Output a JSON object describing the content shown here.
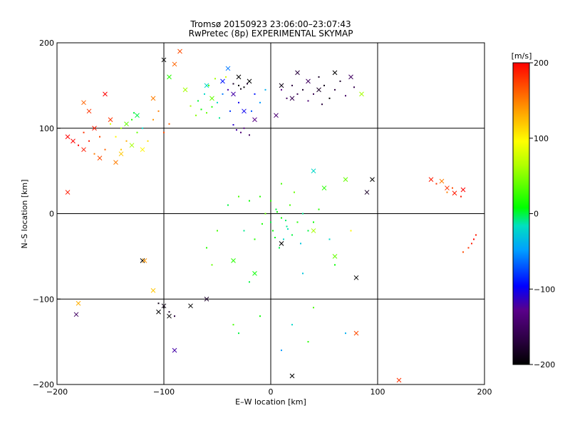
{
  "chart_data": {
    "type": "scatter",
    "title": "Tromsø 20150923 23:06:00–23:07:43",
    "subtitle": "RwPretec (8p) EXPERIMENTAL SKYMAP",
    "xlabel": "E–W location [km]",
    "ylabel": "N–S location [km]",
    "xlim": [
      -200,
      200
    ],
    "ylim": [
      -200,
      200
    ],
    "xticks": [
      -200,
      -100,
      0,
      100,
      200
    ],
    "yticks": [
      -200,
      -100,
      0,
      100,
      200
    ],
    "grid": true,
    "colorbar": {
      "label": "[m/s]",
      "range": [
        -200,
        200
      ],
      "ticks": [
        200,
        100,
        0,
        -100,
        -200
      ],
      "colormap": "rainbow (black-purple-blue-cyan-green-yellow-red)"
    },
    "series": [
      {
        "marker": "dot",
        "points": [
          [
            -30,
            150,
            -210
          ],
          [
            -25,
            148,
            -200
          ],
          [
            -35,
            152,
            -180
          ],
          [
            -28,
            146,
            -190
          ],
          [
            -22,
            152,
            -170
          ],
          [
            -40,
            145,
            -120
          ],
          [
            -45,
            140,
            -60
          ],
          [
            -50,
            130,
            -20
          ],
          [
            -55,
            125,
            20
          ],
          [
            -60,
            118,
            40
          ],
          [
            -65,
            122,
            10
          ],
          [
            -70,
            115,
            50
          ],
          [
            -48,
            112,
            -10
          ],
          [
            -38,
            120,
            -80
          ],
          [
            -30,
            130,
            -100
          ],
          [
            -25,
            100,
            -130
          ],
          [
            -28,
            95,
            -140
          ],
          [
            -32,
            98,
            -120
          ],
          [
            -20,
            92,
            -150
          ],
          [
            -35,
            104,
            -110
          ],
          [
            -15,
            140,
            -90
          ],
          [
            -10,
            130,
            -50
          ],
          [
            -18,
            120,
            -70
          ],
          [
            -5,
            145,
            -40
          ],
          [
            -42,
            160,
            80
          ],
          [
            -52,
            158,
            60
          ],
          [
            -58,
            150,
            30
          ],
          [
            -62,
            140,
            -20
          ],
          [
            -68,
            132,
            0
          ],
          [
            -75,
            126,
            60
          ],
          [
            20,
            150,
            -170
          ],
          [
            30,
            145,
            -180
          ],
          [
            40,
            140,
            -160
          ],
          [
            50,
            150,
            -190
          ],
          [
            60,
            145,
            -170
          ],
          [
            70,
            138,
            -150
          ],
          [
            45,
            160,
            -180
          ],
          [
            55,
            135,
            -200
          ],
          [
            35,
            132,
            -140
          ],
          [
            25,
            140,
            -160
          ],
          [
            15,
            135,
            -150
          ],
          [
            65,
            155,
            -180
          ],
          [
            78,
            148,
            -160
          ],
          [
            10,
            145,
            -130
          ],
          [
            48,
            128,
            -170
          ],
          [
            -130,
            110,
            20
          ],
          [
            -140,
            100,
            60
          ],
          [
            -125,
            95,
            40
          ],
          [
            -145,
            90,
            100
          ],
          [
            -135,
            85,
            130
          ],
          [
            -150,
            105,
            80
          ],
          [
            -120,
            100,
            -20
          ],
          [
            -110,
            110,
            140
          ],
          [
            -160,
            90,
            170
          ],
          [
            -170,
            85,
            190
          ],
          [
            -180,
            80,
            200
          ],
          [
            -175,
            95,
            180
          ],
          [
            -155,
            75,
            160
          ],
          [
            -165,
            70,
            150
          ],
          [
            -140,
            75,
            120
          ],
          [
            -115,
            85,
            110
          ],
          [
            -100,
            95,
            170
          ],
          [
            -95,
            105,
            160
          ],
          [
            -105,
            120,
            150
          ],
          [
            -128,
            118,
            0
          ],
          [
            0,
            15,
            20
          ],
          [
            5,
            5,
            0
          ],
          [
            10,
            -5,
            10
          ],
          [
            15,
            -15,
            -10
          ],
          [
            20,
            -25,
            0
          ],
          [
            25,
            -10,
            20
          ],
          [
            -5,
            0,
            40
          ],
          [
            2,
            -20,
            10
          ],
          [
            12,
            -30,
            -20
          ],
          [
            18,
            10,
            30
          ],
          [
            -10,
            20,
            20
          ],
          [
            -20,
            15,
            10
          ],
          [
            -30,
            20,
            30
          ],
          [
            -40,
            10,
            0
          ],
          [
            30,
            0,
            -10
          ],
          [
            35,
            -20,
            0
          ],
          [
            28,
            -35,
            -30
          ],
          [
            8,
            -40,
            0
          ],
          [
            -15,
            -30,
            20
          ],
          [
            -25,
            -20,
            -10
          ],
          [
            40,
            -10,
            10
          ],
          [
            45,
            5,
            20
          ],
          [
            22,
            25,
            40
          ],
          [
            10,
            35,
            30
          ],
          [
            0,
            -10,
            0
          ],
          [
            6,
            2,
            10
          ],
          [
            14,
            -8,
            -5
          ],
          [
            -8,
            -12,
            15
          ],
          [
            4,
            -28,
            5
          ],
          [
            16,
            -18,
            -15
          ],
          [
            -50,
            -20,
            30
          ],
          [
            -60,
            -40,
            20
          ],
          [
            55,
            -30,
            -20
          ],
          [
            60,
            -60,
            10
          ],
          [
            30,
            -70,
            -30
          ],
          [
            -20,
            -80,
            0
          ],
          [
            -10,
            -120,
            10
          ],
          [
            20,
            -130,
            -20
          ],
          [
            -30,
            -140,
            0
          ],
          [
            40,
            -110,
            30
          ],
          [
            70,
            -140,
            -40
          ],
          [
            -100,
            -110,
            -200
          ],
          [
            -95,
            -115,
            -180
          ],
          [
            -105,
            -105,
            -190
          ],
          [
            -90,
            -120,
            -170
          ],
          [
            190,
            -30,
            200
          ],
          [
            185,
            -40,
            180
          ],
          [
            192,
            -25,
            190
          ],
          [
            180,
            -45,
            170
          ],
          [
            188,
            -35,
            190
          ],
          [
            165,
            25,
            150
          ],
          [
            170,
            30,
            170
          ],
          [
            155,
            35,
            180
          ],
          [
            178,
            20,
            190
          ],
          [
            -35,
            -130,
            30
          ],
          [
            10,
            -160,
            -50
          ],
          [
            35,
            -150,
            20
          ],
          [
            -55,
            -60,
            40
          ],
          [
            75,
            -20,
            100
          ]
        ]
      },
      {
        "marker": "cross",
        "points": [
          [
            -165,
            100,
            190
          ],
          [
            -150,
            110,
            180
          ],
          [
            -185,
            85,
            200
          ],
          [
            -175,
            75,
            190
          ],
          [
            -190,
            90,
            200
          ],
          [
            -160,
            65,
            170
          ],
          [
            -145,
            60,
            150
          ],
          [
            -140,
            70,
            120
          ],
          [
            -130,
            80,
            60
          ],
          [
            -120,
            75,
            100
          ],
          [
            -135,
            105,
            40
          ],
          [
            -125,
            115,
            0
          ],
          [
            -155,
            140,
            200
          ],
          [
            -170,
            120,
            180
          ],
          [
            -110,
            135,
            150
          ],
          [
            -90,
            175,
            160
          ],
          [
            -100,
            180,
            -210
          ],
          [
            -85,
            190,
            170
          ],
          [
            -95,
            160,
            20
          ],
          [
            -80,
            145,
            60
          ],
          [
            -60,
            150,
            -20
          ],
          [
            -55,
            135,
            40
          ],
          [
            -45,
            155,
            -90
          ],
          [
            -40,
            170,
            -60
          ],
          [
            -30,
            160,
            -200
          ],
          [
            -20,
            155,
            -210
          ],
          [
            -35,
            140,
            -120
          ],
          [
            -25,
            120,
            -100
          ],
          [
            -15,
            110,
            -130
          ],
          [
            10,
            150,
            -190
          ],
          [
            25,
            165,
            -170
          ],
          [
            35,
            155,
            -150
          ],
          [
            45,
            145,
            -180
          ],
          [
            20,
            135,
            -160
          ],
          [
            5,
            115,
            -140
          ],
          [
            60,
            165,
            -200
          ],
          [
            75,
            160,
            -150
          ],
          [
            85,
            140,
            60
          ],
          [
            95,
            40,
            -200
          ],
          [
            90,
            25,
            -180
          ],
          [
            70,
            40,
            40
          ],
          [
            50,
            30,
            20
          ],
          [
            40,
            50,
            -20
          ],
          [
            -190,
            25,
            190
          ],
          [
            -175,
            130,
            160
          ],
          [
            150,
            40,
            190
          ],
          [
            165,
            30,
            180
          ],
          [
            160,
            38,
            150
          ],
          [
            180,
            28,
            200
          ],
          [
            172,
            24,
            190
          ],
          [
            -120,
            -55,
            -200
          ],
          [
            -118,
            -55,
            140
          ],
          [
            -110,
            -90,
            120
          ],
          [
            -180,
            -105,
            130
          ],
          [
            -182,
            -118,
            -150
          ],
          [
            -105,
            -115,
            -210
          ],
          [
            -95,
            -120,
            -200
          ],
          [
            -100,
            -108,
            -190
          ],
          [
            -75,
            -108,
            -210
          ],
          [
            -60,
            -100,
            -180
          ],
          [
            -35,
            -55,
            20
          ],
          [
            -15,
            -70,
            10
          ],
          [
            10,
            -35,
            -200
          ],
          [
            40,
            -20,
            60
          ],
          [
            60,
            -50,
            40
          ],
          [
            80,
            -75,
            -200
          ],
          [
            80,
            -140,
            170
          ],
          [
            20,
            -190,
            -200
          ],
          [
            -90,
            -160,
            -120
          ],
          [
            120,
            -195,
            180
          ]
        ]
      }
    ]
  }
}
